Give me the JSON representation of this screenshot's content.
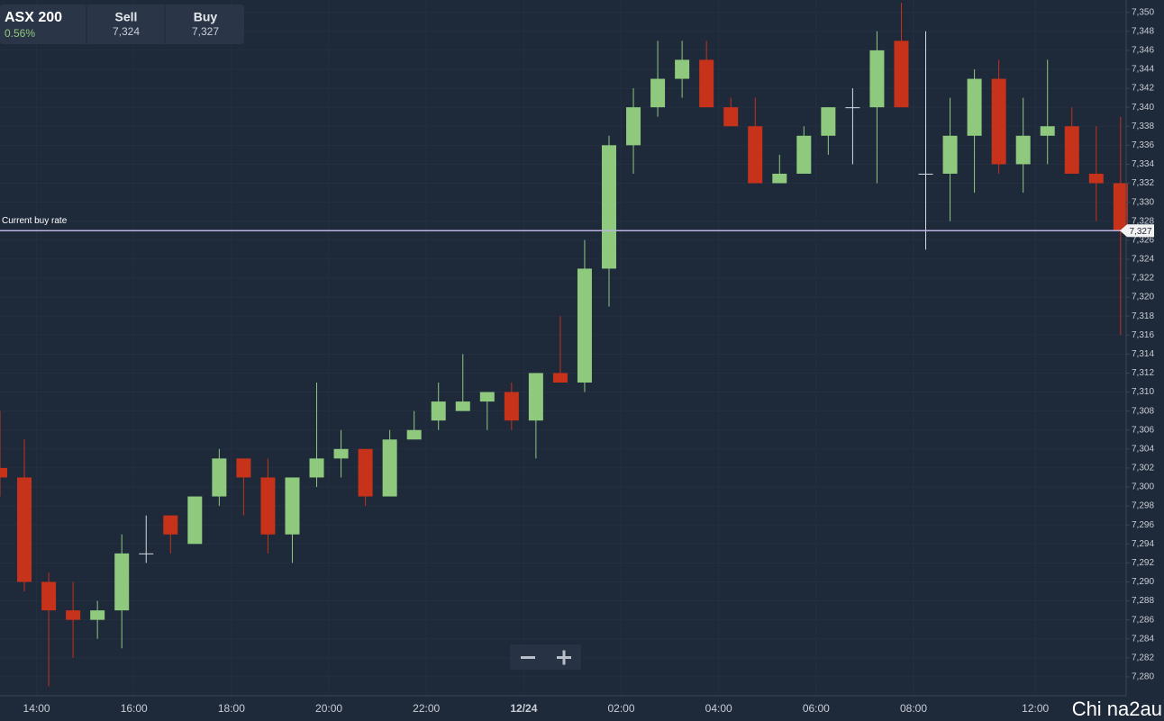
{
  "header": {
    "instrument": "ASX 200",
    "change": "0.56%",
    "sell_label": "Sell",
    "sell_value": "7,324",
    "buy_label": "Buy",
    "buy_value": "7,327"
  },
  "watermark": "Chi na2au",
  "chart_data": {
    "type": "candlestick",
    "categories": [
      null,
      null,
      "14:00",
      null,
      null,
      null,
      "16:00",
      null,
      null,
      null,
      "18:00",
      null,
      null,
      null,
      "20:00",
      null,
      null,
      null,
      "22:00",
      null,
      null,
      null,
      "12/24",
      null,
      null,
      null,
      "02:00",
      null,
      null,
      null,
      "04:00",
      null,
      null,
      null,
      "06:00",
      null,
      null,
      null,
      "08:00",
      null,
      null,
      null,
      null,
      "12:00",
      null,
      null,
      null
    ],
    "open": [
      7302,
      7301,
      7290,
      7287,
      7286,
      7287,
      7293,
      7297,
      7294,
      7299,
      7303,
      7301,
      7295,
      7301,
      7303,
      7304,
      7299,
      7305,
      7307,
      7308,
      7309,
      7310,
      7307,
      7312,
      7311,
      7323,
      7336,
      7340,
      7343,
      7345,
      7340,
      7338,
      7332,
      7333,
      7337,
      7340,
      7340,
      7347,
      7333,
      7333,
      7337,
      7343,
      7334,
      7337,
      7338,
      7333,
      7332
    ],
    "high": [
      7308,
      7305,
      7291,
      7290,
      7288,
      7295,
      7297,
      7297,
      7299,
      7304,
      7303,
      7303,
      7301,
      7311,
      7306,
      7304,
      7306,
      7308,
      7311,
      7314,
      7310,
      7311,
      7312,
      7318,
      7326,
      7337,
      7342,
      7347,
      7347,
      7347,
      7341,
      7341,
      7335,
      7338,
      7340,
      7342,
      7348,
      7351,
      7348,
      7341,
      7344,
      7345,
      7341,
      7345,
      7340,
      7338,
      7339
    ],
    "low": [
      7299,
      7289,
      7279,
      7282,
      7284,
      7283,
      7292,
      7293,
      7294,
      7298,
      7297,
      7293,
      7292,
      7300,
      7301,
      7298,
      7299,
      7305,
      7306,
      7308,
      7306,
      7306,
      7303,
      7311,
      7310,
      7319,
      7333,
      7339,
      7341,
      7340,
      7338,
      7332,
      7332,
      7333,
      7335,
      7334,
      7332,
      7340,
      7325,
      7328,
      7331,
      7333,
      7331,
      7334,
      7333,
      7328,
      7316
    ],
    "close": [
      7301,
      7290,
      7287,
      7286,
      7287,
      7293,
      7293,
      7295,
      7299,
      7303,
      7301,
      7295,
      7301,
      7303,
      7304,
      7299,
      7305,
      7306,
      7309,
      7309,
      7310,
      7307,
      7312,
      7311,
      7323,
      7336,
      7340,
      7343,
      7345,
      7340,
      7338,
      7332,
      7333,
      7337,
      7340,
      7340,
      7346,
      7340,
      7333,
      7337,
      7343,
      7334,
      7337,
      7338,
      7333,
      7332,
      7327
    ],
    "up_color": "#8fc97e",
    "down_color": "#c7321b",
    "doji_color": "#d5dbe3",
    "ylim": [
      7278,
      7351.3
    ],
    "yticks": [
      {
        "value": 7280,
        "label": "7,280"
      },
      {
        "value": 7282,
        "label": "7,282"
      },
      {
        "value": 7284,
        "label": "7,284"
      },
      {
        "value": 7286,
        "label": "7,286"
      },
      {
        "value": 7288,
        "label": "7,288"
      },
      {
        "value": 7290,
        "label": "7,290"
      },
      {
        "value": 7292,
        "label": "7,292"
      },
      {
        "value": 7294,
        "label": "7,294"
      },
      {
        "value": 7296,
        "label": "7,296"
      },
      {
        "value": 7298,
        "label": "7,298"
      },
      {
        "value": 7300,
        "label": "7,300"
      },
      {
        "value": 7302,
        "label": "7,302"
      },
      {
        "value": 7304,
        "label": "7,304"
      },
      {
        "value": 7306,
        "label": "7,306"
      },
      {
        "value": 7308,
        "label": "7,308"
      },
      {
        "value": 7310,
        "label": "7,310"
      },
      {
        "value": 7312,
        "label": "7,312"
      },
      {
        "value": 7314,
        "label": "7,314"
      },
      {
        "value": 7316,
        "label": "7,316"
      },
      {
        "value": 7318,
        "label": "7,318"
      },
      {
        "value": 7320,
        "label": "7,320"
      },
      {
        "value": 7322,
        "label": "7,322"
      },
      {
        "value": 7324,
        "label": "7,324"
      },
      {
        "value": 7326,
        "label": "7,326"
      },
      {
        "value": 7328,
        "label": "7,328"
      },
      {
        "value": 7330,
        "label": "7,330"
      },
      {
        "value": 7332,
        "label": "7,332"
      },
      {
        "value": 7334,
        "label": "7,334"
      },
      {
        "value": 7336,
        "label": "7,336"
      },
      {
        "value": 7338,
        "label": "7,338"
      },
      {
        "value": 7340,
        "label": "7,340"
      },
      {
        "value": 7342,
        "label": "7,342"
      },
      {
        "value": 7344,
        "label": "7,344"
      },
      {
        "value": 7346,
        "label": "7,346"
      },
      {
        "value": 7348,
        "label": "7,348"
      },
      {
        "value": 7350,
        "label": "7,350"
      }
    ],
    "grid": true,
    "reference_line": {
      "label": "Current buy rate",
      "value": 7327,
      "value_label": "7,327",
      "color": "#b9b3e0"
    }
  }
}
